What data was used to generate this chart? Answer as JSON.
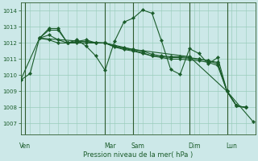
{
  "background_color": "#cce8e8",
  "grid_color": "#99ccbb",
  "line_color": "#1a5c2a",
  "xlabel": "Pression niveau de la mer( hPa )",
  "ylim": [
    1006.3,
    1014.5
  ],
  "yticks": [
    1007,
    1008,
    1009,
    1010,
    1011,
    1012,
    1013,
    1014
  ],
  "day_labels": [
    "Ven",
    "Mar",
    "Sam",
    "Dim",
    "Lun"
  ],
  "day_x": [
    0.5,
    9.5,
    12.5,
    18.5,
    22.5
  ],
  "vline_x": [
    0.5,
    9.0,
    12.0,
    18.0,
    22.0
  ],
  "xlim": [
    0,
    25
  ],
  "series": [
    {
      "points": [
        [
          0,
          1009.7
        ],
        [
          1,
          1010.1
        ],
        [
          2,
          1012.3
        ],
        [
          3,
          1012.9
        ],
        [
          4,
          1012.9
        ],
        [
          5,
          1012.0
        ],
        [
          6,
          1012.2
        ],
        [
          7,
          1011.8
        ],
        [
          8,
          1011.2
        ],
        [
          9,
          1010.3
        ],
        [
          10,
          1012.1
        ],
        [
          11,
          1013.3
        ],
        [
          12,
          1013.55
        ],
        [
          13,
          1014.05
        ],
        [
          14,
          1013.85
        ],
        [
          15,
          1012.15
        ],
        [
          16,
          1010.35
        ],
        [
          17,
          1010.05
        ],
        [
          18,
          1011.65
        ],
        [
          19,
          1011.35
        ],
        [
          20,
          1010.7
        ],
        [
          21,
          1011.1
        ],
        [
          22,
          1009.0
        ],
        [
          23,
          1008.1
        ],
        [
          24,
          1008.0
        ]
      ]
    },
    {
      "points": [
        [
          2,
          1012.3
        ],
        [
          3,
          1012.8
        ],
        [
          4,
          1012.8
        ],
        [
          5,
          1012.0
        ],
        [
          6,
          1012.0
        ],
        [
          7,
          1012.0
        ],
        [
          8,
          1012.0
        ],
        [
          9,
          1012.0
        ],
        [
          10,
          1011.8
        ],
        [
          11,
          1011.7
        ],
        [
          12,
          1011.6
        ],
        [
          13,
          1011.5
        ],
        [
          14,
          1011.3
        ],
        [
          15,
          1011.2
        ],
        [
          16,
          1011.15
        ],
        [
          17,
          1011.15
        ],
        [
          18,
          1011.1
        ],
        [
          19,
          1011.0
        ],
        [
          20,
          1010.9
        ],
        [
          21,
          1010.8
        ],
        [
          22,
          1009.0
        ],
        [
          23,
          1008.1
        ],
        [
          24,
          1008.0
        ]
      ]
    },
    {
      "points": [
        [
          2,
          1012.3
        ],
        [
          3,
          1012.5
        ],
        [
          4,
          1012.2
        ],
        [
          5,
          1012.0
        ],
        [
          6,
          1012.1
        ],
        [
          7,
          1012.2
        ],
        [
          8,
          1012.0
        ],
        [
          9,
          1012.0
        ],
        [
          10,
          1011.8
        ],
        [
          11,
          1011.65
        ],
        [
          12,
          1011.55
        ],
        [
          13,
          1011.4
        ],
        [
          14,
          1011.2
        ],
        [
          15,
          1011.15
        ],
        [
          16,
          1011.1
        ],
        [
          17,
          1011.1
        ],
        [
          18,
          1011.05
        ],
        [
          19,
          1011.0
        ],
        [
          20,
          1010.9
        ],
        [
          21,
          1010.7
        ],
        [
          22,
          1009.0
        ],
        [
          23,
          1008.1
        ],
        [
          24,
          1008.0
        ]
      ]
    },
    {
      "points": [
        [
          2,
          1012.3
        ],
        [
          3,
          1012.2
        ],
        [
          4,
          1012.0
        ],
        [
          5,
          1012.0
        ],
        [
          6,
          1012.05
        ],
        [
          7,
          1012.1
        ],
        [
          8,
          1012.0
        ],
        [
          9,
          1012.0
        ],
        [
          10,
          1011.75
        ],
        [
          11,
          1011.6
        ],
        [
          12,
          1011.5
        ],
        [
          13,
          1011.35
        ],
        [
          14,
          1011.2
        ],
        [
          15,
          1011.1
        ],
        [
          16,
          1011.0
        ],
        [
          17,
          1011.0
        ],
        [
          18,
          1010.95
        ],
        [
          19,
          1010.9
        ],
        [
          20,
          1010.8
        ],
        [
          21,
          1010.6
        ],
        [
          22,
          1009.0
        ],
        [
          23,
          1008.1
        ],
        [
          24,
          1008.0
        ]
      ]
    }
  ],
  "last_segment": [
    [
      22,
      1009.0
    ],
    [
      23,
      1008.1
    ],
    [
      24,
      1008.0
    ],
    [
      24.5,
      1007.6
    ],
    [
      24.8,
      1007.1
    ]
  ],
  "single_line": [
    [
      0,
      1009.7
    ],
    [
      2,
      1012.3
    ],
    [
      9,
      1012.0
    ],
    [
      12,
      1011.6
    ],
    [
      18,
      1011.15
    ],
    [
      22,
      1009.0
    ],
    [
      24.8,
      1007.1
    ]
  ]
}
